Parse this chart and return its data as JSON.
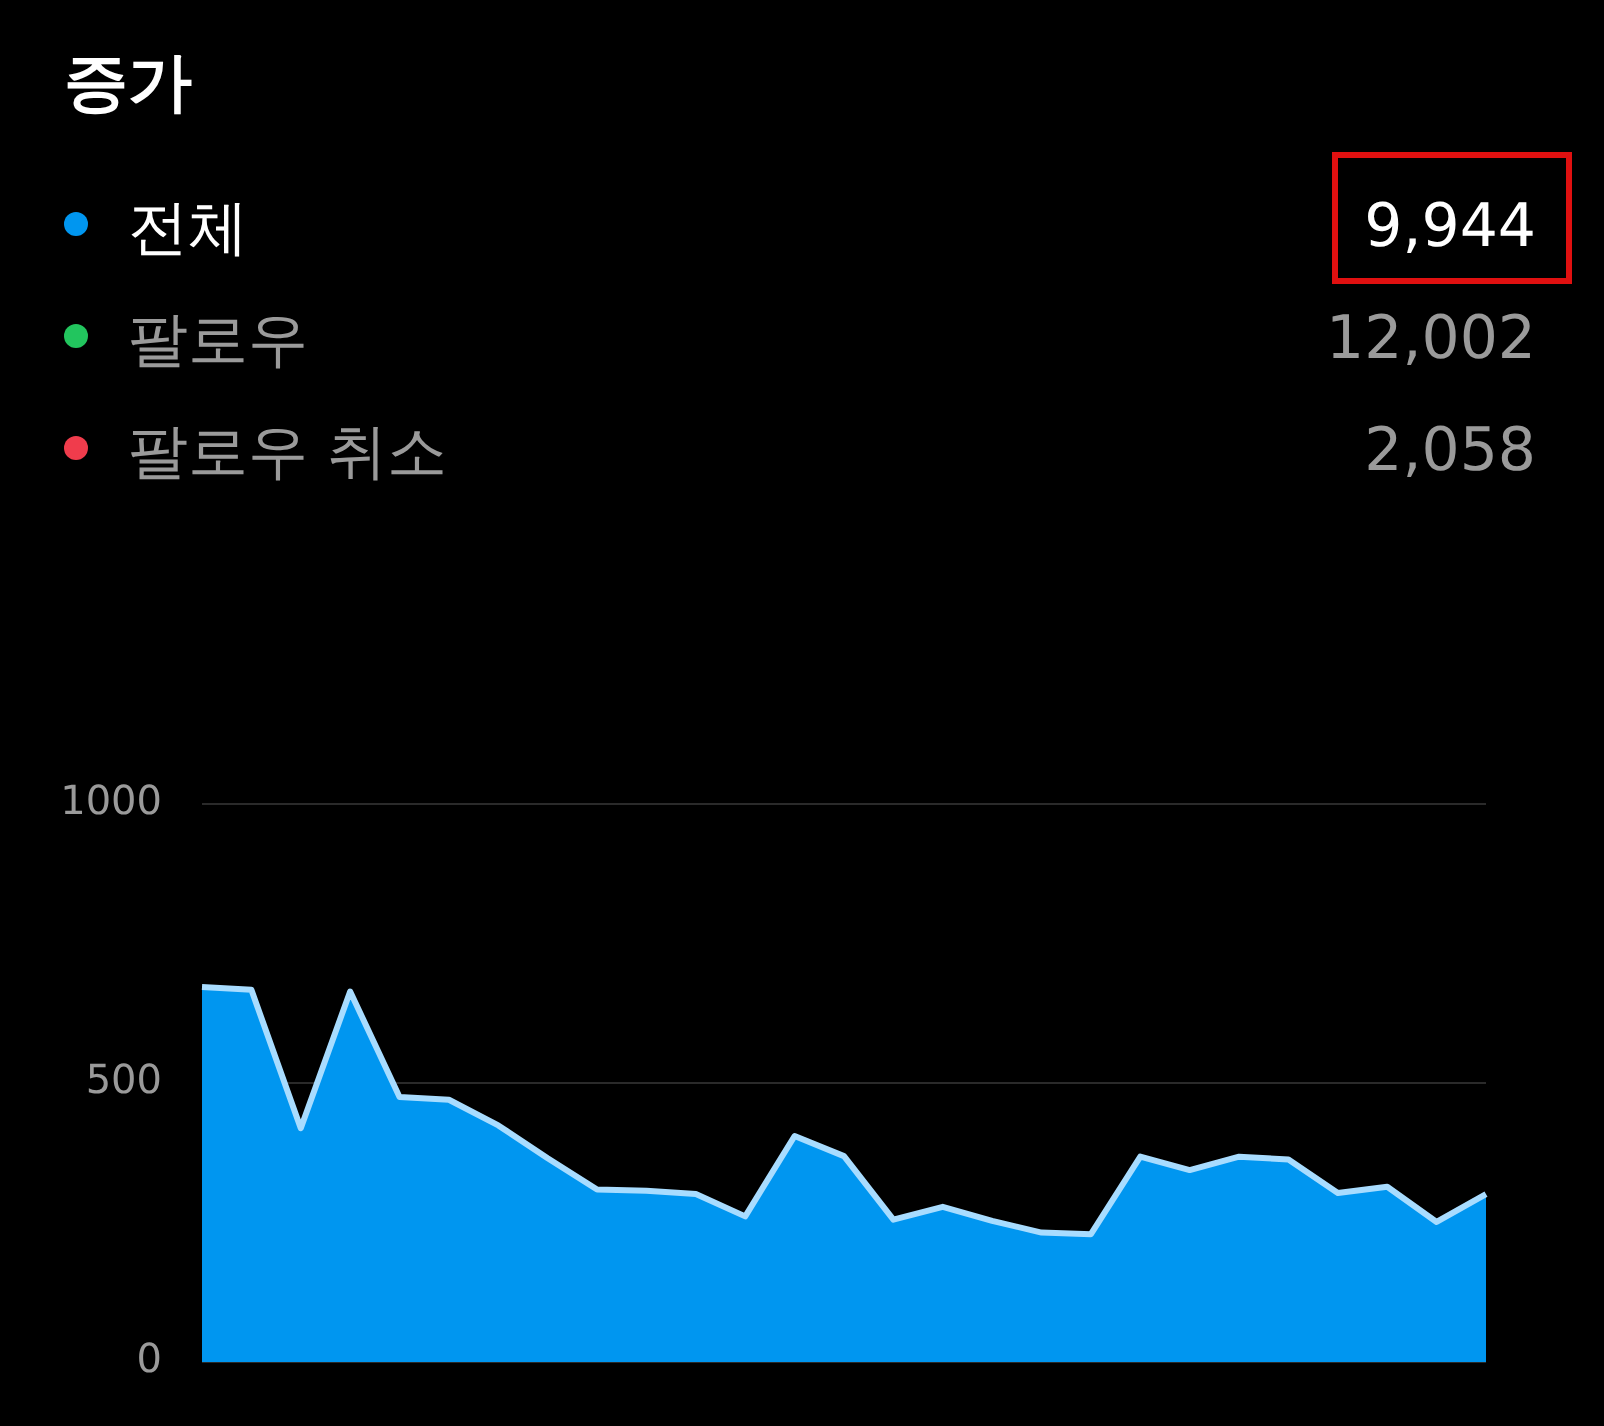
{
  "chart_data": {
    "type": "area",
    "title": "증가",
    "categories": [
      null,
      null,
      null,
      null,
      null,
      null,
      null,
      null,
      null,
      null,
      null,
      null,
      null,
      null,
      null,
      null,
      null,
      null,
      null,
      null,
      null,
      null,
      null,
      null,
      null,
      null,
      null
    ],
    "series": [
      {
        "name": "전체",
        "color": "#0096f0",
        "values": [
          672,
          667,
          419,
          664,
          475,
          470,
          424,
          365,
          309,
          307,
          301,
          261,
          405,
          369,
          255,
          278,
          253,
          232,
          229,
          368,
          344,
          368,
          363,
          303,
          314,
          251,
          301
        ]
      }
    ],
    "annotations": [
      "9,944",
      "팔로우",
      "12,002",
      "팔로우 취소",
      "2,058"
    ],
    "ylim": [
      0,
      1000
    ],
    "yticks": [
      0,
      500,
      1000
    ],
    "grid": "y",
    "legend": "top left"
  }
}
